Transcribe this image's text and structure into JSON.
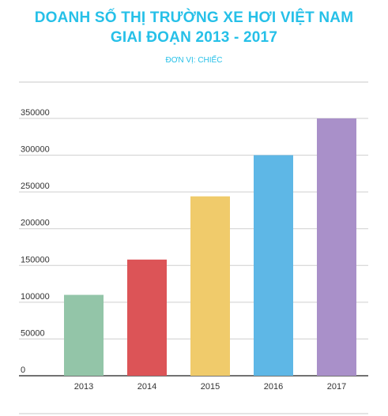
{
  "header": {
    "title_line1": "DOANH SỐ THỊ TRƯỜNG XE HƠI VIỆT NAM",
    "title_line2": "GIAI ĐOẠN 2013 - 2017",
    "unit": "ĐƠN VỊ: CHIẾC"
  },
  "chart_data": {
    "type": "bar",
    "title": "DOANH SỐ THỊ TRƯỜNG XE HƠI VIỆT NAM GIAI ĐOẠN 2013 - 2017",
    "subtitle": "ĐƠN VỊ: CHIẾC",
    "categories": [
      "2013",
      "2014",
      "2015",
      "2016",
      "2017"
    ],
    "values": [
      110000,
      158000,
      244000,
      300000,
      350000
    ],
    "colors": [
      "#93c5a8",
      "#dc5457",
      "#f0cb6b",
      "#5eb7e6",
      "#a990c9"
    ],
    "yticks": [
      0,
      50000,
      100000,
      150000,
      200000,
      250000,
      300000,
      350000
    ],
    "ylim": [
      0,
      350000
    ],
    "grid": true,
    "xlabel": "",
    "ylabel": ""
  }
}
